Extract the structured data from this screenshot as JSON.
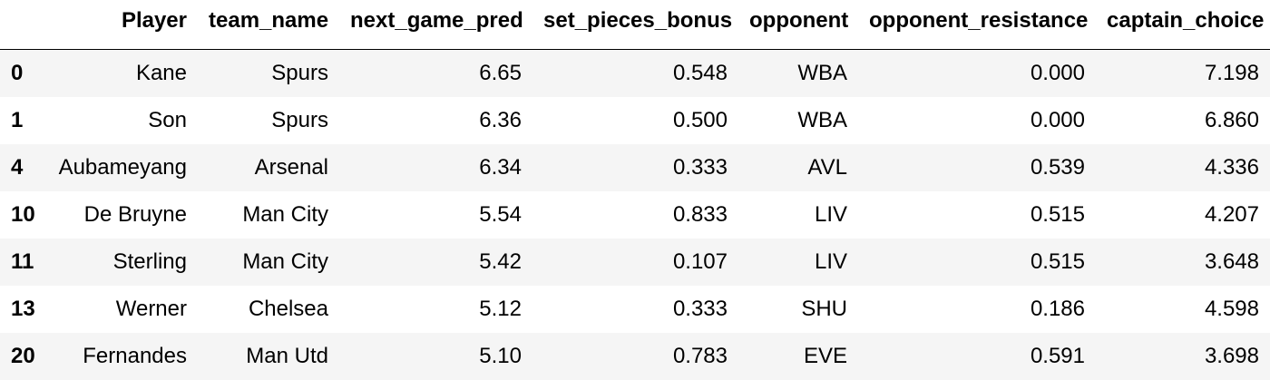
{
  "table": {
    "columns": [
      "",
      "Player",
      "team_name",
      "next_game_pred",
      "set_pieces_bonus",
      "opponent",
      "opponent_resistance",
      "captain_choice"
    ],
    "rows": [
      {
        "index": "0",
        "cells": [
          "Kane",
          "Spurs",
          "6.65",
          "0.548",
          "WBA",
          "0.000",
          "7.198"
        ]
      },
      {
        "index": "1",
        "cells": [
          "Son",
          "Spurs",
          "6.36",
          "0.500",
          "WBA",
          "0.000",
          "6.860"
        ]
      },
      {
        "index": "4",
        "cells": [
          "Aubameyang",
          "Arsenal",
          "6.34",
          "0.333",
          "AVL",
          "0.539",
          "4.336"
        ]
      },
      {
        "index": "10",
        "cells": [
          "De Bruyne",
          "Man City",
          "5.54",
          "0.833",
          "LIV",
          "0.515",
          "4.207"
        ]
      },
      {
        "index": "11",
        "cells": [
          "Sterling",
          "Man City",
          "5.42",
          "0.107",
          "LIV",
          "0.515",
          "3.648"
        ]
      },
      {
        "index": "13",
        "cells": [
          "Werner",
          "Chelsea",
          "5.12",
          "0.333",
          "SHU",
          "0.186",
          "4.598"
        ]
      },
      {
        "index": "20",
        "cells": [
          "Fernandes",
          "Man Utd",
          "5.10",
          "0.783",
          "EVE",
          "0.591",
          "3.698"
        ]
      }
    ]
  }
}
